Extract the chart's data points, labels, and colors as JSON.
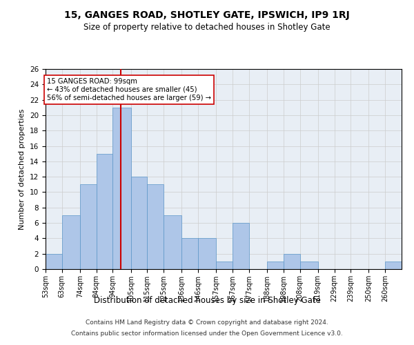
{
  "title1": "15, GANGES ROAD, SHOTLEY GATE, IPSWICH, IP9 1RJ",
  "title2": "Size of property relative to detached houses in Shotley Gate",
  "xlabel": "Distribution of detached houses by size in Shotley Gate",
  "ylabel": "Number of detached properties",
  "bin_labels": [
    "53sqm",
    "63sqm",
    "74sqm",
    "84sqm",
    "94sqm",
    "105sqm",
    "115sqm",
    "125sqm",
    "136sqm",
    "146sqm",
    "157sqm",
    "167sqm",
    "177sqm",
    "188sqm",
    "198sqm",
    "208sqm",
    "219sqm",
    "229sqm",
    "239sqm",
    "250sqm",
    "260sqm"
  ],
  "bar_values": [
    2,
    7,
    11,
    15,
    21,
    12,
    11,
    7,
    4,
    4,
    1,
    6,
    0,
    1,
    2,
    1,
    0,
    0,
    0,
    0,
    1
  ],
  "bar_color": "#aec6e8",
  "bar_edge_color": "#5a96c8",
  "vline_x": 99,
  "bin_edges": [
    53,
    63,
    74,
    84,
    94,
    105,
    115,
    125,
    136,
    146,
    157,
    167,
    177,
    188,
    198,
    208,
    219,
    229,
    239,
    250,
    260,
    270
  ],
  "annotation_line1": "15 GANGES ROAD: 99sqm",
  "annotation_line2": "← 43% of detached houses are smaller (45)",
  "annotation_line3": "56% of semi-detached houses are larger (59) →",
  "annotation_box_color": "#ffffff",
  "annotation_box_edge": "#cc0000",
  "vline_color": "#cc0000",
  "ylim": [
    0,
    26
  ],
  "yticks": [
    0,
    2,
    4,
    6,
    8,
    10,
    12,
    14,
    16,
    18,
    20,
    22,
    24,
    26
  ],
  "footer1": "Contains HM Land Registry data © Crown copyright and database right 2024.",
  "footer2": "Contains public sector information licensed under the Open Government Licence v3.0.",
  "grid_color": "#cccccc",
  "bg_color": "#e8eef5"
}
